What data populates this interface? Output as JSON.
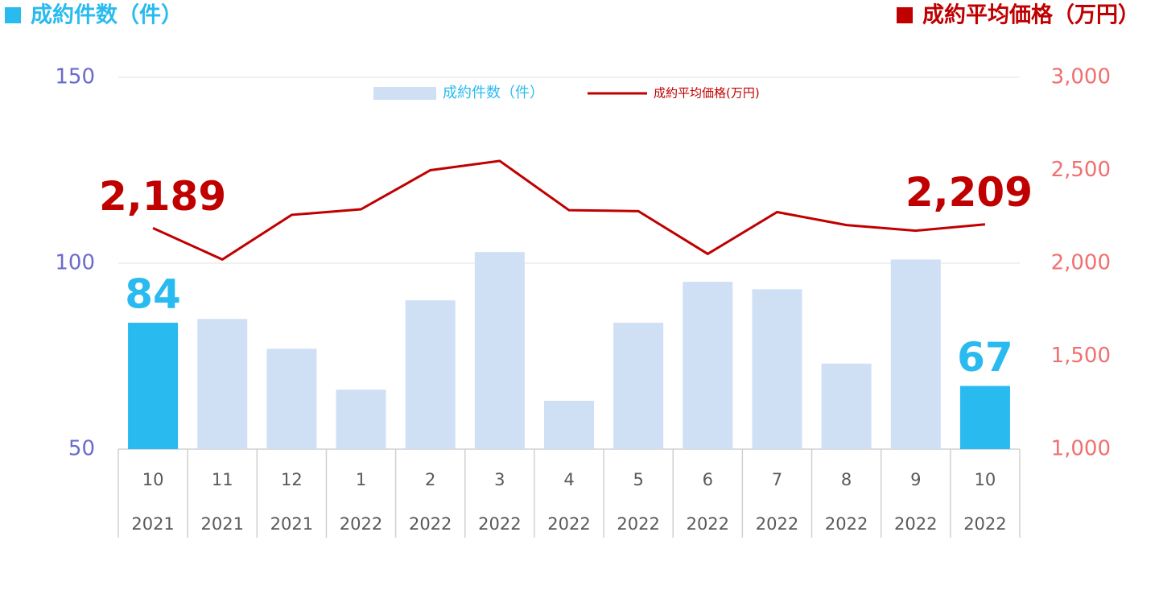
{
  "chart_data": {
    "type": "bar-line",
    "y_title": "成約件数（件）",
    "y2_title": "成約平均価格（万円）",
    "categories": [
      "10",
      "11",
      "12",
      "1",
      "2",
      "3",
      "4",
      "5",
      "6",
      "7",
      "8",
      "9",
      "10"
    ],
    "category_years": [
      "2021",
      "2021",
      "2021",
      "2022",
      "2022",
      "2022",
      "2022",
      "2022",
      "2022",
      "2022",
      "2022",
      "2022",
      "2022"
    ],
    "series": [
      {
        "name": "成約件数（件）",
        "type": "bar",
        "color": "#cfe0f5",
        "highlight_color": "#29bbef",
        "highlight": [
          true,
          false,
          false,
          false,
          false,
          false,
          false,
          false,
          false,
          false,
          false,
          false,
          true
        ],
        "values": [
          84,
          85,
          77,
          66,
          90,
          103,
          63,
          84,
          95,
          93,
          73,
          101,
          67
        ]
      },
      {
        "name": "成約平均価格(万円)",
        "type": "line",
        "axis": "y2",
        "color": "#c00000",
        "values": [
          2189,
          2020,
          2260,
          2290,
          2500,
          2550,
          2285,
          2280,
          2050,
          2275,
          2205,
          2175,
          2209
        ],
        "value_labels": [
          "2,189",
          null,
          null,
          null,
          null,
          null,
          null,
          null,
          null,
          null,
          null,
          null,
          "2,209"
        ]
      }
    ],
    "ylim": [
      50,
      150
    ],
    "yticks": [
      50,
      100,
      150
    ],
    "y2lim": [
      1000,
      3000
    ],
    "y2ticks": [
      {
        "value": 1000,
        "label": "1,000"
      },
      {
        "value": 1500,
        "label": "1,500"
      },
      {
        "value": 2000,
        "label": "2,000"
      },
      {
        "value": 2500,
        "label": "2,500"
      },
      {
        "value": 3000,
        "label": "3,000"
      }
    ],
    "grid": true
  }
}
